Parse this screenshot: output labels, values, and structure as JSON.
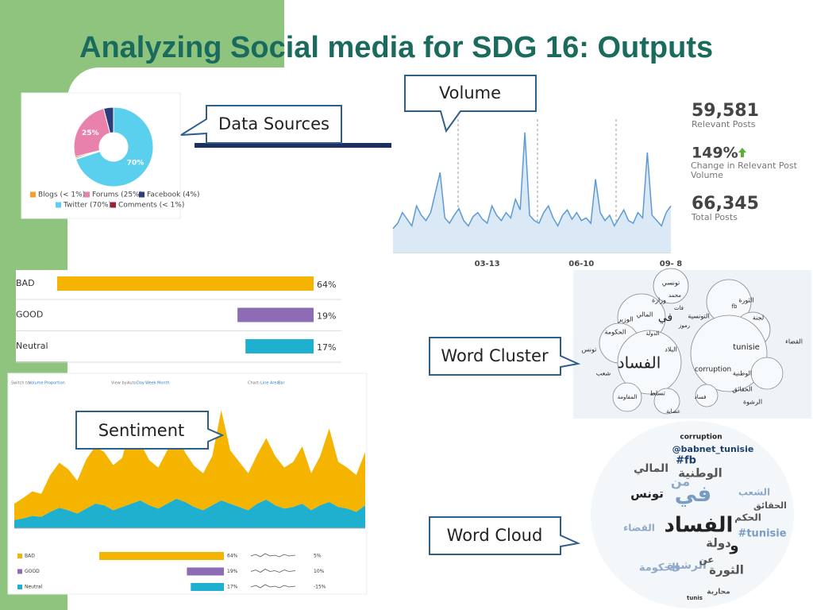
{
  "title": "Analyzing Social media for SDG 16: Outputs",
  "callouts": [
    "Data Sources",
    "Volume",
    "Sentiment",
    "Word Cluster",
    "Word Cloud"
  ],
  "stats": [
    {
      "value": "59,581",
      "label": "Relevant Posts"
    },
    {
      "value": "149%",
      "label": "Change in Relevant Post Volume"
    },
    {
      "value": "66,345",
      "label": "Total Posts"
    }
  ],
  "chart_data": [
    {
      "type": "pie",
      "categories": [
        "Blogs (< 1%)",
        "Forums (25%)",
        "Facebook (4%)",
        "Twitter (70%)",
        "Comments (< 1%)"
      ],
      "values": [
        0.5,
        25,
        4,
        70,
        0.5
      ],
      "value_labels": [
        null,
        "25%",
        null,
        "70%",
        null
      ],
      "colors": [
        "#f0a030",
        "#e882ad",
        "#2c3e7a",
        "#5bd0ee",
        "#a02030"
      ]
    },
    {
      "type": "line",
      "color": "#5b9bd5",
      "ylim": [
        0,
        100
      ],
      "categories": [
        null,
        null,
        null,
        null,
        null,
        null,
        null,
        null,
        null,
        null,
        null,
        null,
        null,
        null,
        null,
        null,
        null,
        null,
        null,
        null,
        "03-13",
        null,
        null,
        null,
        null,
        null,
        null,
        null,
        null,
        null,
        null,
        null,
        null,
        null,
        null,
        null,
        null,
        null,
        null,
        null,
        "06-10",
        null,
        null,
        null,
        null,
        null,
        null,
        null,
        null,
        null,
        null,
        null,
        null,
        null,
        null,
        null,
        null,
        null,
        null,
        "09- 8"
      ],
      "values": [
        18,
        22,
        30,
        25,
        20,
        35,
        28,
        24,
        30,
        45,
        60,
        26,
        22,
        28,
        33,
        24,
        20,
        27,
        30,
        25,
        22,
        35,
        28,
        24,
        30,
        26,
        40,
        32,
        90,
        28,
        24,
        22,
        30,
        35,
        26,
        20,
        28,
        32,
        25,
        30,
        24,
        26,
        22,
        55,
        30,
        24,
        28,
        20,
        26,
        32,
        24,
        22,
        30,
        26,
        75,
        28,
        24,
        20,
        30,
        35
      ]
    },
    {
      "type": "bar",
      "orientation": "horizontal",
      "categories": [
        "BAD",
        "GOOD",
        "Neutral"
      ],
      "values": [
        64,
        19,
        17
      ],
      "value_labels": [
        "64%",
        "19%",
        "17%"
      ],
      "colors": [
        "#f5b400",
        "#8e6bb5",
        "#1fb0cf"
      ]
    },
    {
      "type": "area",
      "stacked": true,
      "toolbar": [
        "Switch to:",
        "Volume",
        "Proportion",
        "View by:",
        "Auto",
        "Day",
        "Week",
        "Month",
        "Chart:",
        "Line",
        "Area",
        "Bar"
      ],
      "series": [
        {
          "color": "#1fb0cf",
          "values": [
            10,
            12,
            15,
            14,
            20,
            25,
            22,
            18,
            24,
            30,
            28,
            22,
            26,
            30,
            34,
            28,
            24,
            30,
            36,
            32,
            26,
            22,
            28,
            34,
            30,
            26,
            22,
            30,
            35,
            28,
            24,
            26,
            30,
            22,
            28,
            32,
            26,
            24,
            20,
            28
          ]
        },
        {
          "color": "#f5b400",
          "values": [
            20,
            25,
            30,
            28,
            45,
            55,
            50,
            40,
            60,
            70,
            65,
            55,
            60,
            100,
            70,
            55,
            50,
            65,
            80,
            60,
            50,
            45,
            60,
            110,
            65,
            55,
            45,
            60,
            75,
            60,
            50,
            55,
            70,
            45,
            60,
            90,
            55,
            50,
            45,
            65
          ]
        }
      ],
      "ylim": [
        0,
        160
      ]
    },
    {
      "type": "table",
      "rows": [
        {
          "label": "BAD",
          "share": 64,
          "share_label": "64%",
          "change": "5%"
        },
        {
          "label": "GOOD",
          "share": 19,
          "share_label": "19%",
          "change": "10%"
        },
        {
          "label": "Neutral",
          "share": 17,
          "share_label": "17%",
          "change": "-15%"
        }
      ],
      "colors": [
        "#f5b400",
        "#8e6bb5",
        "#1fb0cf"
      ]
    }
  ],
  "word_cluster": [
    "تونسي",
    "محمد",
    "وزارة",
    "فات",
    "التونسية",
    "في",
    "المالي",
    "الوزير",
    "الحكومة",
    "الدولة",
    "رموز",
    "البلاد",
    "الفساد",
    "شعب",
    "تونس",
    "تسلط",
    "المقاومة",
    "عصابة",
    "corruption",
    "tunisie",
    "الثورة",
    "لجنة",
    "fb",
    "القضاء",
    "الوطنية",
    "الحقائق",
    "الرشوة",
    "فساد"
  ],
  "word_cloud": [
    "corruption",
    "@babnet_tunisie",
    "#fb",
    "الوطنية",
    "المالي",
    "في",
    "من",
    "تونس",
    "الفساد",
    "الحقائق",
    "الحكم",
    "#tunisie",
    "دولة",
    "و",
    "الثورة",
    "الرشوة",
    "القضاء",
    "الشعب",
    "tunis",
    "عن",
    "الحكومة",
    "محاربة"
  ]
}
